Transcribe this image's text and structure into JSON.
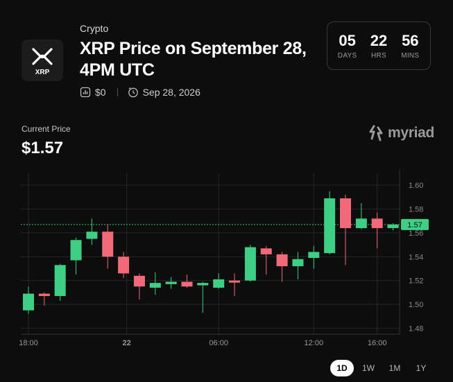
{
  "market": {
    "category": "Crypto",
    "title": "XRP Price on September 28, 4PM UTC",
    "logo_text": "XRP",
    "volume": "$0",
    "end_date": "Sep 28, 2026",
    "icons": {
      "volume": "bar-chart-icon",
      "date": "clock-icon"
    }
  },
  "countdown": [
    {
      "value": "05",
      "label": "DAYS"
    },
    {
      "value": "22",
      "label": "HRS"
    },
    {
      "value": "56",
      "label": "MINS"
    }
  ],
  "price": {
    "label": "Current Price",
    "value": "$1.57"
  },
  "brand": {
    "name": "myriad",
    "icon": "myriad-logo-icon"
  },
  "colors": {
    "background": "#0d0d0d",
    "up": "#3fcf84",
    "down": "#f16a79",
    "current_line": "#3fcf84",
    "grid": "#262626"
  },
  "chart_data": {
    "type": "candlestick",
    "current_price_label": "1.57",
    "current_price": 1.567,
    "ylim": [
      1.475,
      1.61
    ],
    "y_ticks": [
      "1.60",
      "1.58",
      "1.56",
      "1.54",
      "1.52",
      "1.50",
      "1.48"
    ],
    "x_ticks": [
      "18:00",
      "22",
      "06:00",
      "12:00",
      "16:00"
    ],
    "x_tick_index": [
      0,
      6.2,
      12,
      18,
      22
    ],
    "candles": [
      {
        "o": 1.495,
        "h": 1.515,
        "l": 1.492,
        "c": 1.509
      },
      {
        "o": 1.509,
        "h": 1.51,
        "l": 1.499,
        "c": 1.507
      },
      {
        "o": 1.507,
        "h": 1.534,
        "l": 1.503,
        "c": 1.533
      },
      {
        "o": 1.537,
        "h": 1.556,
        "l": 1.525,
        "c": 1.554
      },
      {
        "o": 1.555,
        "h": 1.572,
        "l": 1.55,
        "c": 1.561
      },
      {
        "o": 1.561,
        "h": 1.567,
        "l": 1.53,
        "c": 1.54
      },
      {
        "o": 1.54,
        "h": 1.544,
        "l": 1.522,
        "c": 1.526
      },
      {
        "o": 1.524,
        "h": 1.526,
        "l": 1.504,
        "c": 1.515
      },
      {
        "o": 1.514,
        "h": 1.527,
        "l": 1.508,
        "c": 1.518
      },
      {
        "o": 1.517,
        "h": 1.523,
        "l": 1.513,
        "c": 1.519
      },
      {
        "o": 1.519,
        "h": 1.525,
        "l": 1.514,
        "c": 1.515
      },
      {
        "o": 1.516,
        "h": 1.519,
        "l": 1.493,
        "c": 1.518
      },
      {
        "o": 1.514,
        "h": 1.526,
        "l": 1.513,
        "c": 1.521
      },
      {
        "o": 1.52,
        "h": 1.526,
        "l": 1.507,
        "c": 1.519
      },
      {
        "o": 1.52,
        "h": 1.55,
        "l": 1.519,
        "c": 1.548
      },
      {
        "o": 1.547,
        "h": 1.549,
        "l": 1.525,
        "c": 1.542
      },
      {
        "o": 1.542,
        "h": 1.544,
        "l": 1.519,
        "c": 1.532
      },
      {
        "o": 1.532,
        "h": 1.544,
        "l": 1.521,
        "c": 1.538
      },
      {
        "o": 1.539,
        "h": 1.549,
        "l": 1.53,
        "c": 1.544
      },
      {
        "o": 1.543,
        "h": 1.595,
        "l": 1.542,
        "c": 1.589
      },
      {
        "o": 1.589,
        "h": 1.592,
        "l": 1.533,
        "c": 1.564
      },
      {
        "o": 1.564,
        "h": 1.585,
        "l": 1.563,
        "c": 1.572
      },
      {
        "o": 1.572,
        "h": 1.577,
        "l": 1.547,
        "c": 1.564
      },
      {
        "o": 1.564,
        "h": 1.568,
        "l": 1.562,
        "c": 1.567
      }
    ]
  },
  "ranges": [
    {
      "label": "1D",
      "active": true
    },
    {
      "label": "1W",
      "active": false
    },
    {
      "label": "1M",
      "active": false
    },
    {
      "label": "1Y",
      "active": false
    }
  ]
}
